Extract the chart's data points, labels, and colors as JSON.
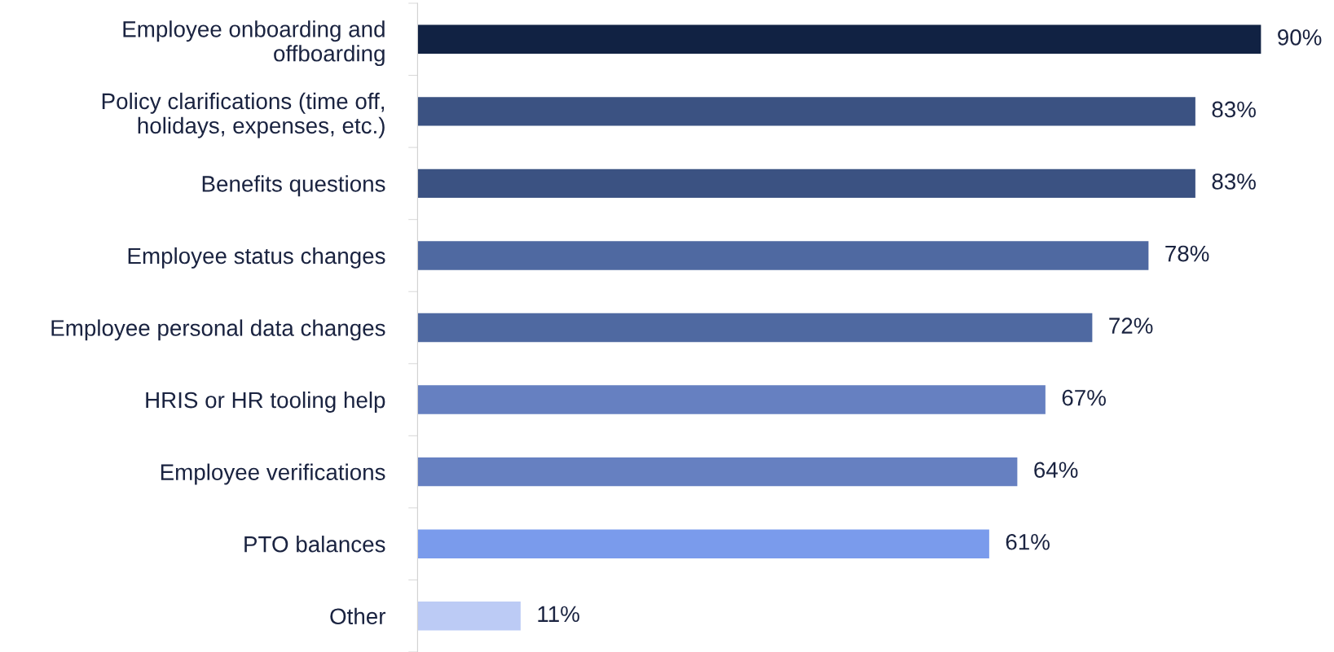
{
  "chart_data": {
    "type": "bar",
    "orientation": "horizontal",
    "categories": [
      "Employee onboarding and\noffboarding",
      "Policy clarifications (time off,\nholidays, expenses, etc.)",
      "Benefits questions",
      "Employee status changes",
      "Employee personal data changes",
      "HRIS or HR tooling help",
      "Employee verifications",
      "PTO balances",
      "Other"
    ],
    "values": [
      90,
      83,
      83,
      78,
      72,
      67,
      64,
      61,
      11
    ],
    "colors": [
      "#112243",
      "#3b5282",
      "#3b5282",
      "#4f69a1",
      "#4f69a1",
      "#6680c1",
      "#6680c1",
      "#7a9bec",
      "#bccbf5"
    ],
    "value_labels": [
      "90%",
      "83%",
      "83%",
      "78%",
      "72%",
      "67%",
      "64%",
      "61%",
      "11%"
    ],
    "grid": false,
    "legend": false
  }
}
